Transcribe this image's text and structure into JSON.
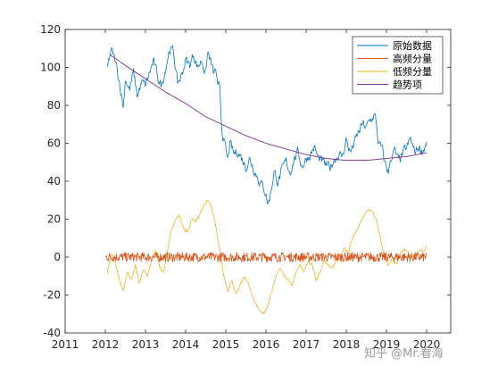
{
  "chart_data": {
    "type": "line",
    "xlim": [
      2011,
      2020.6
    ],
    "ylim": [
      -40,
      120
    ],
    "xticks": [
      "2011",
      "2012",
      "2013",
      "2014",
      "2015",
      "2016",
      "2017",
      "2018",
      "2019",
      "2020"
    ],
    "yticks": [
      "-40",
      "-20",
      "0",
      "20",
      "40",
      "60",
      "80",
      "100",
      "120"
    ],
    "grid": false,
    "legend_position": "top-right",
    "series": [
      {
        "name": "原始数据",
        "color": "#0072BD",
        "x": [
          2012.05,
          2012.15,
          2012.25,
          2012.35,
          2012.45,
          2012.5,
          2012.6,
          2012.7,
          2012.8,
          2012.9,
          2013.0,
          2013.1,
          2013.2,
          2013.3,
          2013.4,
          2013.5,
          2013.6,
          2013.7,
          2013.8,
          2013.9,
          2014.0,
          2014.1,
          2014.2,
          2014.3,
          2014.4,
          2014.5,
          2014.55,
          2014.6,
          2014.7,
          2014.75,
          2014.8,
          2014.85,
          2014.9,
          2015.0,
          2015.05,
          2015.1,
          2015.2,
          2015.3,
          2015.4,
          2015.5,
          2015.6,
          2015.7,
          2015.8,
          2015.9,
          2016.0,
          2016.05,
          2016.1,
          2016.2,
          2016.3,
          2016.4,
          2016.5,
          2016.6,
          2016.7,
          2016.8,
          2016.9,
          2017.0,
          2017.1,
          2017.2,
          2017.3,
          2017.4,
          2017.5,
          2017.6,
          2017.7,
          2017.8,
          2017.9,
          2018.0,
          2018.1,
          2018.2,
          2018.3,
          2018.4,
          2018.5,
          2018.6,
          2018.7,
          2018.75,
          2018.8,
          2018.9,
          2018.95,
          2019.0,
          2019.05,
          2019.1,
          2019.2,
          2019.3,
          2019.4,
          2019.5,
          2019.6,
          2019.7,
          2019.8,
          2019.9,
          2020.0
        ],
        "y": [
          100,
          109,
          103,
          93,
          79,
          95,
          88,
          97,
          85,
          92,
          90,
          97,
          103,
          95,
          90,
          100,
          110,
          108,
          91,
          96,
          104,
          101,
          107,
          100,
          104,
          97,
          108,
          105,
          96,
          99,
          88,
          89,
          68,
          56,
          50,
          60,
          54,
          56,
          52,
          48,
          52,
          47,
          42,
          38,
          34,
          28,
          32,
          45,
          40,
          45,
          50,
          45,
          52,
          55,
          48,
          52,
          54,
          58,
          52,
          50,
          48,
          47,
          52,
          54,
          53,
          62,
          55,
          60,
          65,
          70,
          68,
          72,
          75,
          70,
          60,
          56,
          50,
          48,
          44,
          52,
          56,
          50,
          54,
          57,
          62,
          55,
          58,
          56,
          61
        ],
        "noise": 2.2
      },
      {
        "name": "高频分量",
        "color": "#D95319",
        "x": [
          2012.0,
          2020.0
        ],
        "y": [
          0,
          0
        ],
        "noise": 2.5
      },
      {
        "name": "低频分量",
        "color": "#EDB120",
        "x": [
          2012.05,
          2012.15,
          2012.25,
          2012.35,
          2012.45,
          2012.55,
          2012.65,
          2012.75,
          2012.85,
          2012.95,
          2013.05,
          2013.15,
          2013.25,
          2013.35,
          2013.45,
          2013.55,
          2013.65,
          2013.75,
          2013.85,
          2013.95,
          2014.05,
          2014.15,
          2014.25,
          2014.35,
          2014.45,
          2014.55,
          2014.65,
          2014.75,
          2014.85,
          2014.95,
          2015.05,
          2015.15,
          2015.25,
          2015.35,
          2015.45,
          2015.55,
          2015.65,
          2015.75,
          2015.85,
          2015.95,
          2016.05,
          2016.15,
          2016.25,
          2016.35,
          2016.45,
          2016.55,
          2016.65,
          2016.75,
          2016.85,
          2016.95,
          2017.05,
          2017.15,
          2017.25,
          2017.35,
          2017.45,
          2017.55,
          2017.65,
          2017.75,
          2017.85,
          2017.95,
          2018.05,
          2018.15,
          2018.25,
          2018.35,
          2018.45,
          2018.55,
          2018.65,
          2018.75,
          2018.85,
          2018.95,
          2019.05,
          2019.15,
          2019.25,
          2019.35,
          2019.45,
          2019.55,
          2019.65,
          2019.75,
          2019.85,
          2019.95,
          2020.0
        ],
        "y": [
          -8,
          2,
          -3,
          -12,
          -18,
          -8,
          -12,
          -4,
          -14,
          -6,
          -10,
          -2,
          4,
          -5,
          -8,
          3,
          15,
          20,
          22,
          15,
          13,
          20,
          19,
          22,
          27,
          30,
          26,
          16,
          4,
          -10,
          -18,
          -12,
          -20,
          -15,
          -10,
          -13,
          -20,
          -25,
          -28,
          -30,
          -25,
          -18,
          -10,
          -6,
          -10,
          -12,
          -15,
          -8,
          -4,
          -8,
          -2,
          -4,
          -12,
          -8,
          -2,
          -4,
          -6,
          -2,
          -1,
          5,
          2,
          10,
          14,
          18,
          22,
          25,
          24,
          20,
          10,
          0,
          -4,
          -1,
          -4,
          2,
          4,
          2,
          0,
          2,
          4,
          3,
          6
        ],
        "noise": 0.6
      },
      {
        "name": "趋势项",
        "color": "#7E2F8E",
        "x": [
          2012.1,
          2012.5,
          2013.0,
          2013.5,
          2014.0,
          2014.5,
          2015.0,
          2015.5,
          2016.0,
          2016.5,
          2017.0,
          2017.5,
          2018.0,
          2018.5,
          2019.0,
          2019.5,
          2020.0
        ],
        "y": [
          107,
          101,
          94,
          87,
          81,
          74,
          69,
          64,
          60,
          57,
          54,
          52,
          51,
          51,
          52,
          53,
          55
        ],
        "noise": 0
      }
    ]
  },
  "watermark": "知乎 @Mr.看海"
}
